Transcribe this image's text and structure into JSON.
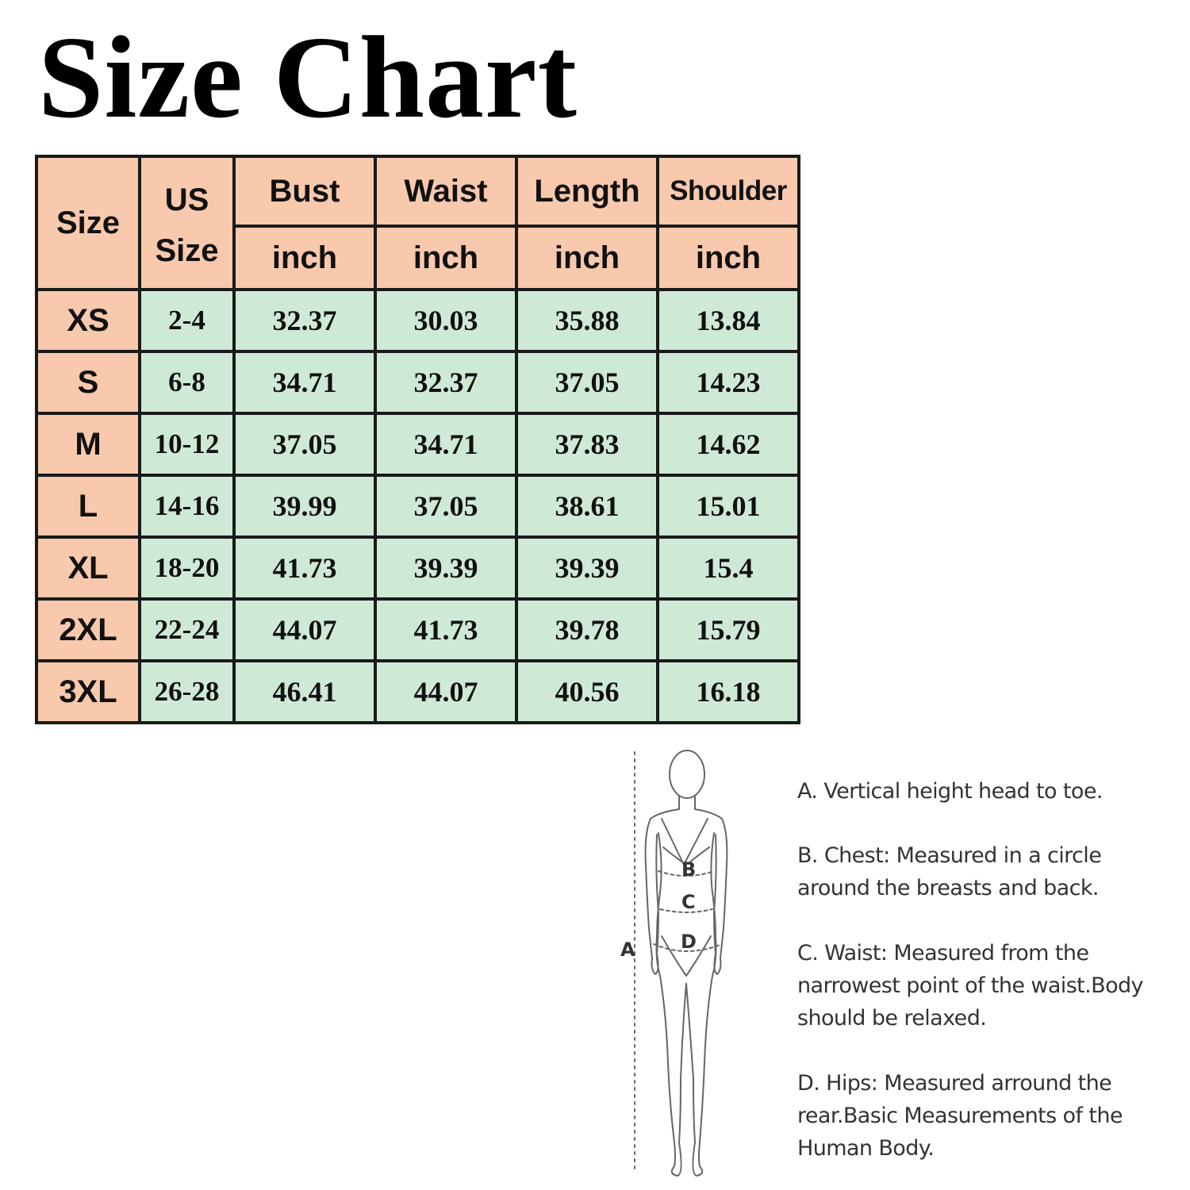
{
  "title": "Size Chart",
  "table": {
    "header_row1": {
      "size": "Size",
      "us_size_line1": "US",
      "us_size_line2": "Size",
      "bust": "Bust",
      "waist": "Waist",
      "length": "Length",
      "shoulder": "Shoulder"
    },
    "unit": "inch",
    "rows": [
      {
        "size": "XS",
        "us": "2-4",
        "bust": "32.37",
        "waist": "30.03",
        "length": "35.88",
        "shoulder": "13.84"
      },
      {
        "size": "S",
        "us": "6-8",
        "bust": "34.71",
        "waist": "32.37",
        "length": "37.05",
        "shoulder": "14.23"
      },
      {
        "size": "M",
        "us": "10-12",
        "bust": "37.05",
        "waist": "34.71",
        "length": "37.83",
        "shoulder": "14.62"
      },
      {
        "size": "L",
        "us": "14-16",
        "bust": "39.99",
        "waist": "37.05",
        "length": "38.61",
        "shoulder": "15.01"
      },
      {
        "size": "XL",
        "us": "18-20",
        "bust": "41.73",
        "waist": "39.39",
        "length": "39.39",
        "shoulder": "15.4"
      },
      {
        "size": "2XL",
        "us": "22-24",
        "bust": "44.07",
        "waist": "41.73",
        "length": "39.78",
        "shoulder": "15.79"
      },
      {
        "size": "3XL",
        "us": "26-28",
        "bust": "46.41",
        "waist": "44.07",
        "length": "40.56",
        "shoulder": "16.18"
      }
    ],
    "colors": {
      "header_bg": "#f8c9ad",
      "cell_bg": "#cfe9d7",
      "border": "#1a1a1a"
    }
  },
  "figure": {
    "label_a": "A",
    "label_b": "B",
    "label_c": "C",
    "label_d": "D"
  },
  "descriptions": {
    "a": "A. Vertical height head to toe.",
    "b": "B. Chest: Measured in a circle around the breasts and back.",
    "c": "C. Waist: Measured from the narrowest point of the waist.Body should be relaxed.",
    "d": "D. Hips: Measured arround the rear.Basic Measurements of the Human Body."
  }
}
